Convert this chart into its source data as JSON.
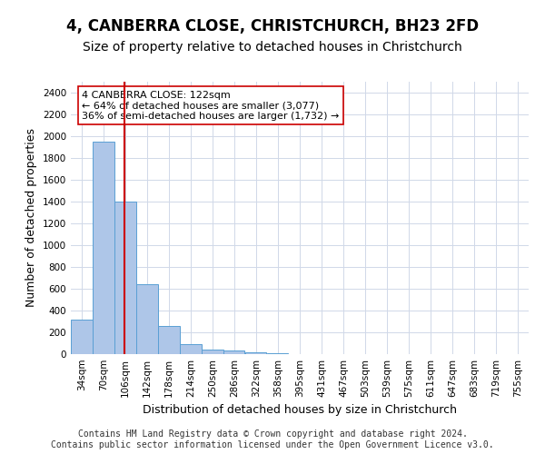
{
  "title": "4, CANBERRA CLOSE, CHRISTCHURCH, BH23 2FD",
  "subtitle": "Size of property relative to detached houses in Christchurch",
  "xlabel": "Distribution of detached houses by size in Christchurch",
  "ylabel": "Number of detached properties",
  "footer_line1": "Contains HM Land Registry data © Crown copyright and database right 2024.",
  "footer_line2": "Contains public sector information licensed under the Open Government Licence v3.0.",
  "bin_labels": [
    "34sqm",
    "70sqm",
    "106sqm",
    "142sqm",
    "178sqm",
    "214sqm",
    "250sqm",
    "286sqm",
    "322sqm",
    "358sqm",
    "395sqm",
    "431sqm",
    "467sqm",
    "503sqm",
    "539sqm",
    "575sqm",
    "611sqm",
    "647sqm",
    "683sqm",
    "719sqm",
    "755sqm"
  ],
  "bar_values": [
    320,
    1950,
    1400,
    640,
    260,
    95,
    45,
    30,
    20,
    10,
    0,
    0,
    0,
    0,
    0,
    0,
    0,
    0,
    0,
    0,
    0
  ],
  "bin_left_edges": [
    34,
    70,
    106,
    142,
    178,
    214,
    250,
    286,
    322,
    358,
    395,
    431,
    467,
    503,
    539,
    575,
    611,
    647,
    683,
    719,
    755
  ],
  "bar_color": "#aec6e8",
  "bar_edge_color": "#5a9fd4",
  "grid_color": "#d0d8e8",
  "property_size": 122,
  "property_label": "4 CANBERRA CLOSE: 122sqm",
  "annotation_line1": "← 64% of detached houses are smaller (3,077)",
  "annotation_line2": "36% of semi-detached houses are larger (1,732) →",
  "vline_color": "#cc0000",
  "annotation_box_color": "#ffffff",
  "annotation_box_edge": "#cc0000",
  "ylim": [
    0,
    2500
  ],
  "yticks": [
    0,
    200,
    400,
    600,
    800,
    1000,
    1200,
    1400,
    1600,
    1800,
    2000,
    2200,
    2400
  ],
  "title_fontsize": 12,
  "subtitle_fontsize": 10,
  "xlabel_fontsize": 9,
  "ylabel_fontsize": 9,
  "tick_fontsize": 7.5,
  "annotation_fontsize": 8,
  "footer_fontsize": 7
}
